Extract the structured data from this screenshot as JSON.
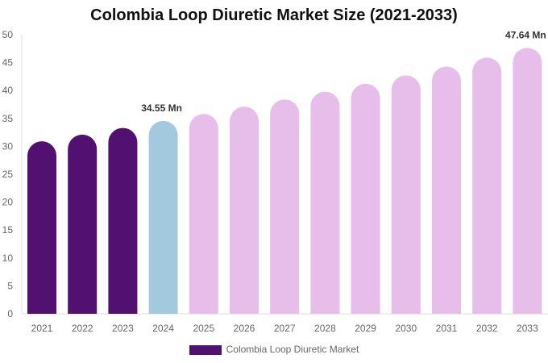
{
  "chart_data": {
    "type": "bar",
    "title": "Colombia Loop Diuretic Market Size (2021-2033)",
    "categories": [
      "2021",
      "2022",
      "2023",
      "2024",
      "2025",
      "2026",
      "2027",
      "2028",
      "2029",
      "2030",
      "2031",
      "2032",
      "2033"
    ],
    "series": [
      {
        "name": "Colombia Loop Diuretic Market",
        "values": [
          30.9,
          32.1,
          33.3,
          34.55,
          35.8,
          37.1,
          38.4,
          39.8,
          41.2,
          42.7,
          44.3,
          45.9,
          47.64
        ]
      }
    ],
    "data_labels": {
      "2024": "34.55 Mn",
      "2033": "47.64 Mn"
    },
    "ylim": [
      0,
      50
    ],
    "yticks": [
      0,
      5,
      10,
      15,
      20,
      25,
      30,
      35,
      40,
      45,
      50
    ],
    "grid": false,
    "legend": "bottom",
    "colors": {
      "historical": "#521170",
      "base_year": "#a3c9df",
      "forecast": "#e7bde9"
    }
  }
}
